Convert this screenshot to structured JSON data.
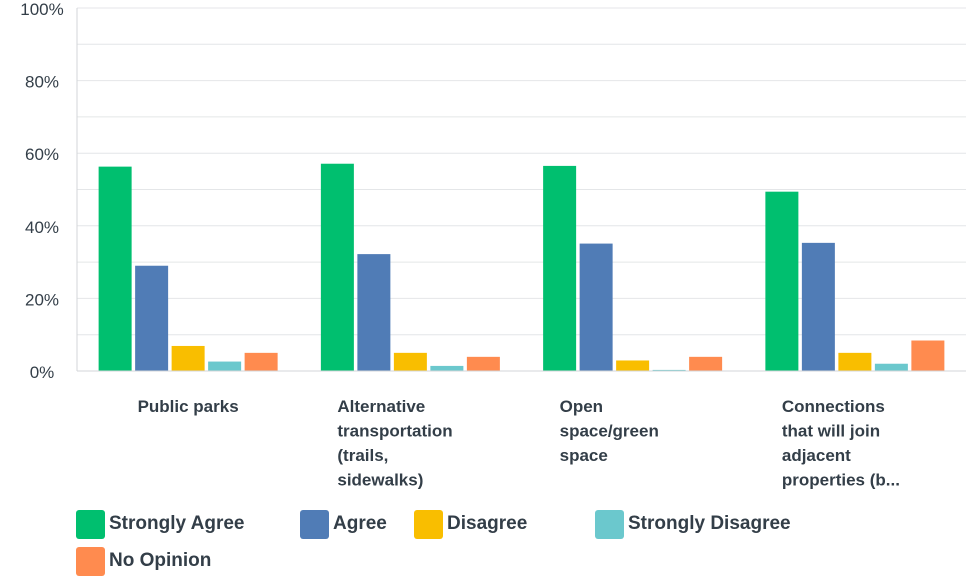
{
  "chart_data": {
    "type": "bar",
    "categories": [
      [
        "Public parks"
      ],
      [
        "Alternative",
        "transportation",
        "(trails,",
        "sidewalks)"
      ],
      [
        "Open",
        "space/green",
        "space"
      ],
      [
        "Connections",
        "that will join",
        "adjacent",
        "properties (b..."
      ]
    ],
    "series": [
      {
        "name": "Strongly Agree",
        "color": "#00bf6f",
        "values": [
          56.3,
          57.1,
          56.5,
          49.4
        ]
      },
      {
        "name": "Agree",
        "color": "#507cb6",
        "values": [
          29.0,
          32.2,
          35.1,
          35.3
        ]
      },
      {
        "name": "Disagree",
        "color": "#f9be00",
        "values": [
          6.9,
          5.0,
          2.9,
          5.0
        ]
      },
      {
        "name": "Strongly Disagree",
        "color": "#6bc8cd",
        "values": [
          2.6,
          1.4,
          0.3,
          2.0
        ]
      },
      {
        "name": "No Opinion",
        "color": "#ff8b4f",
        "values": [
          5.0,
          3.9,
          3.9,
          8.4
        ]
      }
    ],
    "yticks": [
      "0%",
      "20%",
      "40%",
      "60%",
      "80%",
      "100%"
    ],
    "ylim": [
      0,
      100
    ],
    "grid": true,
    "legend_position": "bottom"
  }
}
